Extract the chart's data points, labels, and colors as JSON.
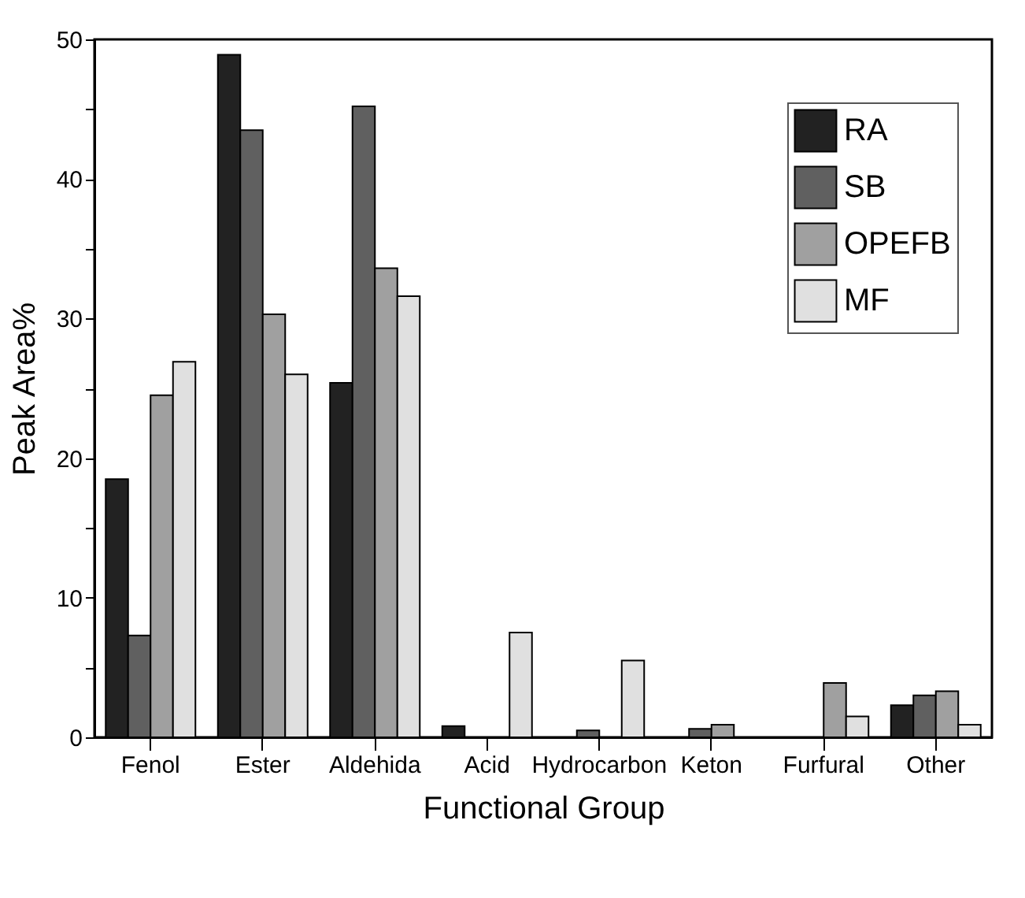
{
  "chart_data": {
    "type": "bar",
    "xlabel": "Functional Group",
    "ylabel": "Peak Area%",
    "categories": [
      "Fenol",
      "Ester",
      "Aldehida",
      "Acid",
      "Hydrocarbon",
      "Keton",
      "Furfural",
      "Other"
    ],
    "series": [
      {
        "name": "RA",
        "color": "#222222",
        "values": [
          18.5,
          48.9,
          25.4,
          0.8,
          null,
          null,
          null,
          2.3
        ]
      },
      {
        "name": "SB",
        "color": "#606060",
        "values": [
          7.3,
          43.5,
          45.2,
          null,
          0.5,
          0.6,
          null,
          3.0
        ]
      },
      {
        "name": "OPEFB",
        "color": "#a0a0a0",
        "values": [
          24.5,
          30.3,
          33.6,
          null,
          null,
          0.9,
          3.9,
          3.3
        ]
      },
      {
        "name": "MF",
        "color": "#e0e0e0",
        "values": [
          26.9,
          26.0,
          31.6,
          7.5,
          5.5,
          null,
          1.5,
          0.9
        ]
      }
    ],
    "ylim": [
      0,
      50
    ],
    "yticks": [
      0,
      {
        "value": 5,
        "label": null
      },
      10,
      {
        "value": 15,
        "label": null
      },
      20,
      {
        "value": 25,
        "label": null
      },
      30,
      {
        "value": 35,
        "label": null
      },
      40,
      {
        "value": 45,
        "label": null
      },
      50
    ],
    "grid": false,
    "legend": "top right"
  }
}
